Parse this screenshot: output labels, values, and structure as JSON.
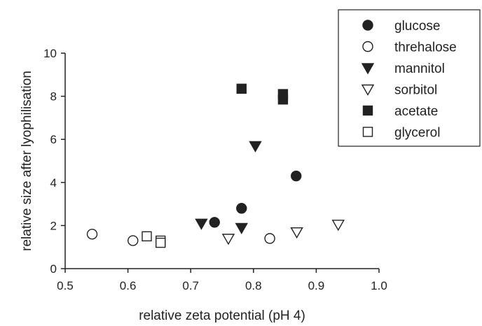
{
  "chart_data": {
    "type": "scatter",
    "title": "",
    "xlabel": "relative zeta potential (pH 4)",
    "ylabel": "relative size after lyophilisation",
    "xlim": [
      0.5,
      1.0
    ],
    "ylim": [
      0,
      10
    ],
    "xticks": [
      "0.5",
      "0.6",
      "0.7",
      "0.8",
      "0.9",
      "1.0"
    ],
    "yticks": [
      "0",
      "2",
      "4",
      "6",
      "8",
      "10"
    ],
    "grid": false,
    "legend_position": "top-right",
    "series": [
      {
        "name": "glucose",
        "marker": "filled-circle",
        "color": "#222222",
        "points": [
          [
            0.738,
            2.15
          ],
          [
            0.781,
            2.8
          ],
          [
            0.868,
            4.3
          ]
        ]
      },
      {
        "name": "threhalose",
        "marker": "open-circle",
        "color": "#222222",
        "points": [
          [
            0.543,
            1.6
          ],
          [
            0.608,
            1.3
          ],
          [
            0.826,
            1.4
          ]
        ]
      },
      {
        "name": "mannitol",
        "marker": "filled-triangle-down",
        "color": "#222222",
        "points": [
          [
            0.717,
            2.1
          ],
          [
            0.781,
            1.9
          ],
          [
            0.803,
            5.7
          ]
        ]
      },
      {
        "name": "sorbitol",
        "marker": "open-triangle-down",
        "color": "#222222",
        "points": [
          [
            0.76,
            1.4
          ],
          [
            0.869,
            1.7
          ],
          [
            0.935,
            2.05
          ]
        ]
      },
      {
        "name": "acetate",
        "marker": "filled-square",
        "color": "#222222",
        "points": [
          [
            0.781,
            8.35
          ],
          [
            0.847,
            7.85
          ],
          [
            0.847,
            8.1
          ]
        ]
      },
      {
        "name": "glycerol",
        "marker": "open-square",
        "color": "#222222",
        "points": [
          [
            0.63,
            1.5
          ],
          [
            0.652,
            1.3
          ],
          [
            0.652,
            1.2
          ]
        ]
      }
    ]
  }
}
